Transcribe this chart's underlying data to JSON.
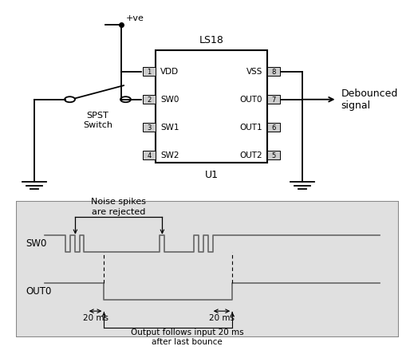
{
  "title_schematic": "LS18",
  "chip_label": "U1",
  "chip_pins_left": [
    "VDD",
    "SW0",
    "SW1",
    "SW2"
  ],
  "chip_pins_right": [
    "VSS",
    "OUT0",
    "OUT1",
    "OUT2"
  ],
  "chip_pin_nums_left": [
    "1",
    "2",
    "3",
    "4"
  ],
  "chip_pin_nums_right": [
    "8",
    "7",
    "6",
    "5"
  ],
  "switch_label": "SPST\nSwitch",
  "output_label": "Debounced\nsignal",
  "vdd_label": "+ve",
  "chip_u1": "U1",
  "sw0_label": "SW0",
  "out0_label": "OUT0",
  "noise_label": "Noise spikes\nare rejected",
  "timing_label": "Output follows input 20 ms\nafter last bounce",
  "ms20_label": "20 ms",
  "bg_color": "#e0e0e0",
  "line_color": "#000000",
  "chip_fill": "#ffffff",
  "pin_box_fill": "#cccccc",
  "fig_bg": "#ffffff",
  "border_color": "#888888"
}
